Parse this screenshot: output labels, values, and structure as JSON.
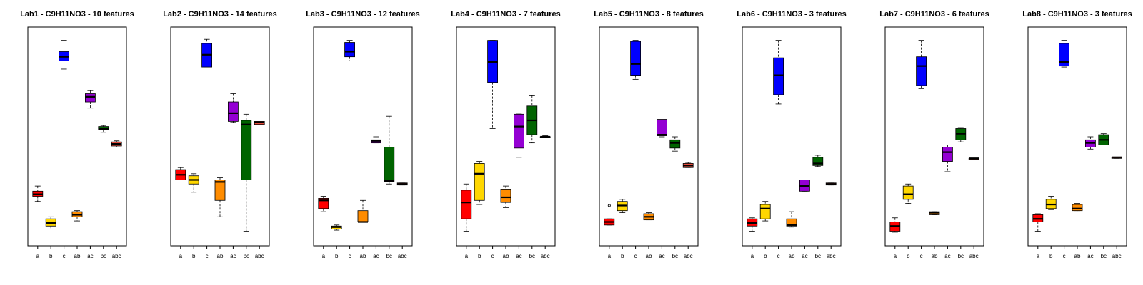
{
  "chart_data": {
    "type": "boxplot",
    "shared": {
      "categories": [
        "a",
        "b",
        "c",
        "ab",
        "ac",
        "bc",
        "abc"
      ],
      "colors": [
        "#ff0000",
        "#ffd700",
        "#0000ff",
        "#ff8c00",
        "#9400d3",
        "#006400",
        "#c0392b"
      ],
      "y_axis_ticks_shown": false,
      "grid": false,
      "legend": "none"
    },
    "panels": [
      {
        "title": "Lab1 - C9H11NO3 - 10 features",
        "ylim": [
          0,
          100
        ],
        "boxes": [
          {
            "min": 18.5,
            "q1": 21.0,
            "median": 22.0,
            "q3": 23.5,
            "max": 26.0
          },
          {
            "min": 5.0,
            "q1": 6.5,
            "median": 8.0,
            "q3": 10.0,
            "max": 11.0
          },
          {
            "min": 83.0,
            "q1": 87.0,
            "median": 89.0,
            "q3": 91.5,
            "max": 97.0
          },
          {
            "min": 9.0,
            "q1": 11.0,
            "median": 12.0,
            "q3": 13.5,
            "max": 14.0
          },
          {
            "min": 64.0,
            "q1": 67.0,
            "median": 69.5,
            "q3": 71.0,
            "max": 72.5
          },
          {
            "min": 52.0,
            "q1": 53.5,
            "median": 54.0,
            "q3": 55.0,
            "max": 55.5
          },
          {
            "min": 45.0,
            "q1": 45.5,
            "median": 46.5,
            "q3": 47.5,
            "max": 48.0,
            "color": "#e74c3c"
          }
        ]
      },
      {
        "title": "Lab2 - C9H11NO3 - 14 features",
        "ylim": [
          0,
          100
        ],
        "boxes": [
          {
            "min": 29.0,
            "q1": 29.0,
            "median": 31.5,
            "q3": 34.0,
            "max": 35.0
          },
          {
            "min": 23.0,
            "q1": 27.0,
            "median": 29.0,
            "q3": 31.0,
            "max": 32.0
          },
          {
            "min": 84.0,
            "q1": 84.0,
            "median": 90.0,
            "q3": 95.5,
            "max": 97.5
          },
          {
            "min": 11.0,
            "q1": 19.0,
            "median": 28.0,
            "q3": 29.0,
            "max": 30.0
          },
          {
            "min": 57.0,
            "q1": 57.5,
            "median": 61.5,
            "q3": 67.0,
            "max": 71.0
          },
          {
            "min": 4.0,
            "q1": 29.0,
            "median": 56.0,
            "q3": 58.0,
            "max": 61.0
          },
          {
            "min": 56.0,
            "q1": 56.0,
            "median": 57.0,
            "q3": 57.5,
            "max": 57.5,
            "color": "#e74c3c"
          }
        ]
      },
      {
        "title": "Lab3 - C9H11NO3 - 12 features",
        "ylim": [
          0,
          100
        ],
        "boxes": [
          {
            "min": 13.5,
            "q1": 15.0,
            "median": 19.0,
            "q3": 20.0,
            "max": 21.0
          },
          {
            "min": 4.5,
            "q1": 5.0,
            "median": 6.0,
            "q3": 6.5,
            "max": 7.0
          },
          {
            "min": 87.0,
            "q1": 89.0,
            "median": 91.5,
            "q3": 96.0,
            "max": 97.0
          },
          {
            "min": 8.5,
            "q1": 8.5,
            "median": 8.5,
            "q3": 14.0,
            "max": 19.0
          },
          {
            "min": 47.0,
            "q1": 47.0,
            "median": 48.0,
            "q3": 48.5,
            "max": 50.0
          },
          {
            "min": 27.0,
            "q1": 28.0,
            "median": 28.5,
            "q3": 45.0,
            "max": 60.0
          },
          {
            "min": 26.5,
            "q1": 26.5,
            "median": 27.0,
            "q3": 27.5,
            "max": 27.5,
            "color": "#e74c3c"
          }
        ]
      },
      {
        "title": "Lab4 - C9H11NO3 - 7 features",
        "ylim": [
          0,
          100
        ],
        "boxes": [
          {
            "min": 4.0,
            "q1": 10.0,
            "median": 18.0,
            "q3": 24.0,
            "max": 27.0
          },
          {
            "min": 17.0,
            "q1": 19.0,
            "median": 32.0,
            "q3": 37.0,
            "max": 38.0
          },
          {
            "min": 54.0,
            "q1": 76.5,
            "median": 86.5,
            "q3": 97.0,
            "max": 97.0
          },
          {
            "min": 15.5,
            "q1": 18.0,
            "median": 20.5,
            "q3": 24.5,
            "max": 26.0
          },
          {
            "min": 40.0,
            "q1": 44.5,
            "median": 55.0,
            "q3": 61.0,
            "max": 61.5
          },
          {
            "min": 47.0,
            "q1": 51.0,
            "median": 58.0,
            "q3": 65.0,
            "max": 70.0
          },
          {
            "min": 49.5,
            "q1": 50.0,
            "median": 50.0,
            "q3": 50.0,
            "max": 50.5,
            "color": "#e74c3c"
          }
        ]
      },
      {
        "title": "Lab5 - C9H11NO3 - 8 features",
        "ylim": [
          0,
          100
        ],
        "boxes": [
          {
            "min": 7.0,
            "q1": 7.0,
            "median": 8.5,
            "q3": 10.0,
            "max": 10.0,
            "outliers": [
              16.5
            ]
          },
          {
            "min": 13.0,
            "q1": 14.0,
            "median": 16.5,
            "q3": 18.5,
            "max": 19.5
          },
          {
            "min": 78.0,
            "q1": 80.0,
            "median": 85.5,
            "q3": 96.5,
            "max": 97.0
          },
          {
            "min": 9.5,
            "q1": 9.5,
            "median": 11.0,
            "q3": 12.5,
            "max": 13.0
          },
          {
            "min": 50.0,
            "q1": 50.5,
            "median": 51.0,
            "q3": 58.5,
            "max": 63.0
          },
          {
            "min": 43.0,
            "q1": 44.5,
            "median": 47.0,
            "q3": 48.5,
            "max": 50.0
          },
          {
            "min": 35.0,
            "q1": 35.0,
            "median": 36.0,
            "q3": 37.0,
            "max": 37.5,
            "color": "#e74c3c"
          }
        ]
      },
      {
        "title": "Lab6 - C9H11NO3 - 3 features",
        "ylim": [
          0,
          100
        ],
        "boxes": [
          {
            "min": 4.0,
            "q1": 6.5,
            "median": 8.0,
            "q3": 10.0,
            "max": 10.5
          },
          {
            "min": 9.0,
            "q1": 10.0,
            "median": 15.0,
            "q3": 17.0,
            "max": 18.5
          },
          {
            "min": 66.0,
            "q1": 70.5,
            "median": 80.0,
            "q3": 88.5,
            "max": 97.0
          },
          {
            "min": 6.0,
            "q1": 6.5,
            "median": 7.0,
            "q3": 10.0,
            "max": 13.5
          },
          {
            "min": 23.5,
            "q1": 23.5,
            "median": 26.0,
            "q3": 29.0,
            "max": 29.0
          },
          {
            "min": 35.5,
            "q1": 36.0,
            "median": 37.0,
            "q3": 40.0,
            "max": 41.0
          },
          {
            "min": 26.5,
            "q1": 26.5,
            "median": 27.0,
            "q3": 27.5,
            "max": 27.5,
            "color": "#e74c3c"
          }
        ]
      },
      {
        "title": "Lab7 - C9H11NO3 - 6 features",
        "ylim": [
          0,
          100
        ],
        "boxes": [
          {
            "min": 3.5,
            "q1": 4.0,
            "median": 6.5,
            "q3": 8.5,
            "max": 10.5
          },
          {
            "min": 17.5,
            "q1": 19.5,
            "median": 22.0,
            "q3": 26.0,
            "max": 27.0
          },
          {
            "min": 73.5,
            "q1": 75.0,
            "median": 84.5,
            "q3": 89.0,
            "max": 97.0
          },
          {
            "min": 12.0,
            "q1": 12.0,
            "median": 13.0,
            "q3": 13.5,
            "max": 13.5
          },
          {
            "min": 33.0,
            "q1": 38.0,
            "median": 42.5,
            "q3": 45.0,
            "max": 46.0
          },
          {
            "min": 47.5,
            "q1": 48.5,
            "median": 51.5,
            "q3": 54.0,
            "max": 54.5
          },
          {
            "min": 39.0,
            "q1": 39.0,
            "median": 39.5,
            "q3": 39.5,
            "max": 39.5,
            "color": "#e74c3c"
          }
        ]
      },
      {
        "title": "Lab8 - C9H11NO3 - 3 features",
        "ylim": [
          0,
          100
        ],
        "boxes": [
          {
            "min": 4.0,
            "q1": 8.5,
            "median": 10.0,
            "q3": 12.0,
            "max": 12.5
          },
          {
            "min": 14.5,
            "q1": 15.0,
            "median": 17.0,
            "q3": 19.5,
            "max": 21.0
          },
          {
            "min": 84.0,
            "q1": 84.5,
            "median": 86.5,
            "q3": 95.5,
            "max": 97.0
          },
          {
            "min": 14.0,
            "q1": 14.0,
            "median": 15.0,
            "q3": 17.0,
            "max": 17.5
          },
          {
            "min": 44.0,
            "q1": 45.0,
            "median": 47.0,
            "q3": 48.5,
            "max": 50.0
          },
          {
            "min": 46.0,
            "q1": 46.0,
            "median": 48.5,
            "q3": 51.0,
            "max": 51.5
          },
          {
            "min": 39.5,
            "q1": 39.5,
            "median": 40.0,
            "q3": 40.0,
            "max": 40.0,
            "color": "#e74c3c"
          }
        ]
      }
    ]
  }
}
